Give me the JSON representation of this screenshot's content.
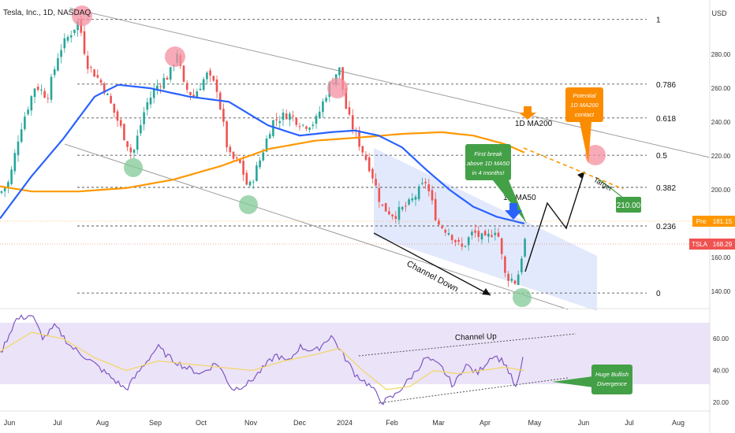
{
  "header": {
    "symbol_title": "Tesla, Inc., 1D, NASDAQ"
  },
  "currency": "USD",
  "price_axis": {
    "ticks": [
      "280.00",
      "260.00",
      "240.00",
      "220.00",
      "200.00",
      "180.00",
      "160.00",
      "140.00"
    ],
    "pre_label": "Pre",
    "pre_value": "181.15",
    "ticker_label": "TSLA",
    "ticker_value": "168.29"
  },
  "rsi_axis": {
    "ticks": [
      "60.00",
      "40.00",
      "20.00"
    ]
  },
  "time_axis": {
    "labels": [
      "Jun",
      "Jul",
      "Aug",
      "Sep",
      "Oct",
      "Nov",
      "Dec",
      "2024",
      "Feb",
      "Mar",
      "Apr",
      "May",
      "Jun",
      "Jul",
      "Aug"
    ]
  },
  "fib_levels": [
    {
      "label": "1",
      "price": 300.6
    },
    {
      "label": "0.786",
      "price": 262.4
    },
    {
      "label": "0.618",
      "price": 242.4
    },
    {
      "label": "0.5",
      "price": 220.4
    },
    {
      "label": "0.382",
      "price": 201.4
    },
    {
      "label": "0.236",
      "price": 178.6
    },
    {
      "label": "0",
      "price": 139.0
    }
  ],
  "annotations": {
    "ma200_label": "1D MA200",
    "ma50_label": "1D MA50",
    "potential": [
      "Potential",
      "1D MA200",
      "contact"
    ],
    "first_break": [
      "First break",
      "above 1D MA50",
      "in 4 months!"
    ],
    "target_label": "Target",
    "target_value": "210.00",
    "channel_down": "Channel Down",
    "channel_up": "Channel Up",
    "bullish": [
      "Huge Bullish",
      "Divergence"
    ]
  },
  "chart_data": [
    {
      "type": "candlestick",
      "title": "Tesla, Inc., 1D, NASDAQ",
      "ylabel": "USD",
      "ylim": [
        130,
        310
      ],
      "x": [
        "2023-06",
        "2023-07",
        "2023-08",
        "2023-09",
        "2023-10",
        "2023-11",
        "2023-12",
        "2024-01",
        "2024-02",
        "2024-03",
        "2024-04",
        "2024-05"
      ],
      "series": [
        {
          "name": "TSLA",
          "values": [
            205,
            285,
            245,
            255,
            262,
            215,
            240,
            250,
            190,
            175,
            150,
            168.29
          ]
        },
        {
          "name": "1D MA50",
          "values": [
            190,
            235,
            260,
            258,
            245,
            230,
            235,
            235,
            225,
            200,
            180,
            178
          ]
        },
        {
          "name": "1D MA200",
          "values": [
            195,
            194,
            200,
            205,
            212,
            220,
            226,
            232,
            233,
            228,
            220,
            212
          ]
        }
      ],
      "markers": {
        "pre": 181.15,
        "last": 168.29,
        "target": 210.0
      }
    },
    {
      "type": "line",
      "title": "RSI",
      "ylim": [
        15,
        75
      ],
      "yticks": [
        20,
        40,
        60
      ],
      "x": [
        "2023-06",
        "2023-07",
        "2023-08",
        "2023-09",
        "2023-10",
        "2023-11",
        "2023-12",
        "2024-01",
        "2024-02",
        "2024-03",
        "2024-04",
        "2024-05"
      ],
      "series": [
        {
          "name": "RSI",
          "values": [
            60,
            70,
            32,
            56,
            38,
            36,
            52,
            64,
            20,
            34,
            28,
            52
          ]
        },
        {
          "name": "RSI MA",
          "values": [
            58,
            62,
            42,
            50,
            44,
            40,
            48,
            58,
            28,
            32,
            38,
            40
          ]
        }
      ]
    }
  ],
  "colors": {
    "up": "#26a69a",
    "down": "#ef5350",
    "ma50": "#2962ff",
    "ma200": "#ff9800",
    "red_circle": "#f48fa0",
    "green_circle": "#81c995",
    "channel_fill": "#dbe4fb",
    "rsi_band": "#e8e0f7",
    "rsi_line": "#7e57c2",
    "rsi_ma": "#f2d76a",
    "first_break_box": "#43a047",
    "potential_box": "#fb8c00"
  }
}
